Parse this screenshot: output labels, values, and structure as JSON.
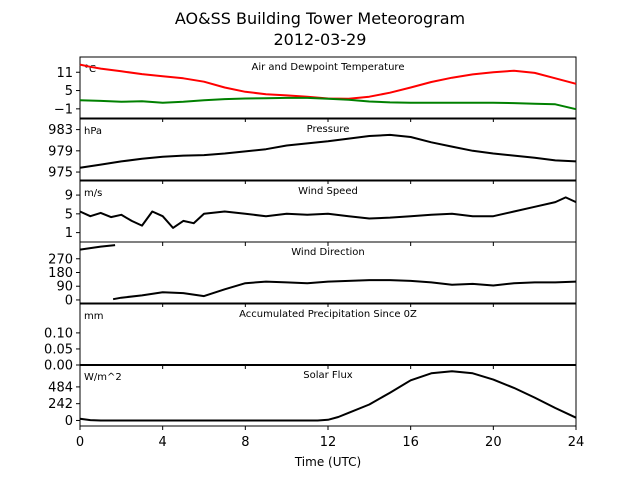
{
  "title": "AO&SS Building Tower Meteorogram",
  "subtitle": "2012-03-29",
  "xlabel": "Time (UTC)",
  "x_ticks": [
    0,
    4,
    8,
    12,
    16,
    20,
    24
  ],
  "x_tick_labels": [
    "0",
    "4",
    "8",
    "12",
    "16",
    "20",
    "24"
  ],
  "chart_data": [
    {
      "type": "line",
      "title": "Air and Dewpoint Temperature",
      "unit": "°C",
      "ylim": [
        -4,
        16
      ],
      "y_ticks": [
        -1,
        5,
        11
      ],
      "y_tick_labels": [
        "−1",
        "5",
        "11"
      ],
      "series": [
        {
          "color": "#ff0000",
          "points": [
            [
              0,
              13.5
            ],
            [
              0.5,
              12.8
            ],
            [
              1,
              12.2
            ],
            [
              2,
              11.3
            ],
            [
              3,
              10.4
            ],
            [
              4,
              9.7
            ],
            [
              5,
              9.0
            ],
            [
              6,
              7.9
            ],
            [
              7,
              6.0
            ],
            [
              8,
              4.6
            ],
            [
              9,
              3.8
            ],
            [
              10,
              3.4
            ],
            [
              11,
              3.0
            ],
            [
              12,
              2.4
            ],
            [
              13,
              2.3
            ],
            [
              14,
              3.0
            ],
            [
              15,
              4.3
            ],
            [
              16,
              6.0
            ],
            [
              17,
              7.8
            ],
            [
              18,
              9.2
            ],
            [
              19,
              10.3
            ],
            [
              20,
              11.0
            ],
            [
              21,
              11.5
            ],
            [
              22,
              10.8
            ],
            [
              23,
              9.0
            ],
            [
              24,
              7.2
            ]
          ]
        },
        {
          "color": "#008000",
          "points": [
            [
              0,
              1.8
            ],
            [
              1,
              1.6
            ],
            [
              2,
              1.3
            ],
            [
              3,
              1.5
            ],
            [
              4,
              1.0
            ],
            [
              5,
              1.3
            ],
            [
              6,
              1.8
            ],
            [
              7,
              2.2
            ],
            [
              8,
              2.4
            ],
            [
              9,
              2.5
            ],
            [
              10,
              2.6
            ],
            [
              11,
              2.6
            ],
            [
              12,
              2.3
            ],
            [
              13,
              2.0
            ],
            [
              14,
              1.4
            ],
            [
              15,
              1.1
            ],
            [
              16,
              1.0
            ],
            [
              17,
              1.0
            ],
            [
              18,
              1.0
            ],
            [
              19,
              1.0
            ],
            [
              20,
              1.0
            ],
            [
              21,
              0.9
            ],
            [
              22,
              0.7
            ],
            [
              23,
              0.5
            ],
            [
              24,
              -1.1
            ]
          ]
        }
      ]
    },
    {
      "type": "line",
      "title": "Pressure",
      "unit": "hPa",
      "ylim": [
        973.5,
        985
      ],
      "y_ticks": [
        975,
        979,
        983
      ],
      "y_tick_labels": [
        "975",
        "979",
        "983"
      ],
      "series": [
        {
          "color": "#000000",
          "points": [
            [
              0,
              975.8
            ],
            [
              1,
              976.4
            ],
            [
              2,
              977.0
            ],
            [
              3,
              977.5
            ],
            [
              4,
              977.9
            ],
            [
              5,
              978.1
            ],
            [
              6,
              978.2
            ],
            [
              7,
              978.5
            ],
            [
              8,
              978.9
            ],
            [
              9,
              979.3
            ],
            [
              10,
              980.0
            ],
            [
              11,
              980.4
            ],
            [
              12,
              980.8
            ],
            [
              13,
              981.3
            ],
            [
              14,
              981.8
            ],
            [
              15,
              982.0
            ],
            [
              16,
              981.6
            ],
            [
              17,
              980.6
            ],
            [
              18,
              979.8
            ],
            [
              19,
              979.0
            ],
            [
              20,
              978.5
            ],
            [
              21,
              978.1
            ],
            [
              22,
              977.7
            ],
            [
              23,
              977.2
            ],
            [
              24,
              977.0
            ]
          ]
        }
      ]
    },
    {
      "type": "line",
      "title": "Wind Speed",
      "unit": "m/s",
      "ylim": [
        -1,
        12
      ],
      "y_ticks": [
        1,
        5,
        9
      ],
      "y_tick_labels": [
        "1",
        "5",
        "9"
      ],
      "series": [
        {
          "color": "#000000",
          "points": [
            [
              0,
              5.5
            ],
            [
              0.5,
              4.5
            ],
            [
              1,
              5.2
            ],
            [
              1.5,
              4.3
            ],
            [
              2,
              4.8
            ],
            [
              2.5,
              3.5
            ],
            [
              3,
              2.5
            ],
            [
              3.5,
              5.5
            ],
            [
              4,
              4.5
            ],
            [
              4.5,
              2.0
            ],
            [
              5,
              3.5
            ],
            [
              5.5,
              3.0
            ],
            [
              6,
              5.0
            ],
            [
              7,
              5.5
            ],
            [
              8,
              5.0
            ],
            [
              9,
              4.5
            ],
            [
              10,
              5.0
            ],
            [
              11,
              4.8
            ],
            [
              12,
              5.0
            ],
            [
              13,
              4.5
            ],
            [
              14,
              4.0
            ],
            [
              15,
              4.2
            ],
            [
              16,
              4.5
            ],
            [
              17,
              4.8
            ],
            [
              18,
              5.0
            ],
            [
              19,
              4.5
            ],
            [
              20,
              4.5
            ],
            [
              21,
              5.5
            ],
            [
              22,
              6.5
            ],
            [
              23,
              7.5
            ],
            [
              23.5,
              8.5
            ],
            [
              24,
              7.5
            ]
          ]
        }
      ]
    },
    {
      "type": "line",
      "title": "Wind Direction",
      "unit": "",
      "ylim": [
        -20,
        380
      ],
      "y_ticks": [
        0,
        90,
        180,
        270
      ],
      "y_tick_labels": [
        "0",
        "90",
        "180",
        "270"
      ],
      "series": [
        {
          "color": "#000000",
          "points": [
            [
              0,
              330
            ],
            [
              0.5,
              340
            ],
            [
              1,
              350
            ],
            [
              1.7,
              360
            ]
          ]
        },
        {
          "color": "#000000",
          "points": [
            [
              1.6,
              5
            ],
            [
              2,
              15
            ],
            [
              3,
              30
            ],
            [
              4,
              50
            ],
            [
              5,
              45
            ],
            [
              6,
              25
            ],
            [
              7,
              70
            ],
            [
              8,
              110
            ],
            [
              9,
              120
            ],
            [
              10,
              115
            ],
            [
              11,
              110
            ],
            [
              12,
              120
            ],
            [
              13,
              125
            ],
            [
              14,
              130
            ],
            [
              15,
              130
            ],
            [
              16,
              125
            ],
            [
              17,
              115
            ],
            [
              18,
              100
            ],
            [
              19,
              105
            ],
            [
              20,
              95
            ],
            [
              21,
              110
            ],
            [
              22,
              115
            ],
            [
              23,
              115
            ],
            [
              24,
              120
            ]
          ]
        }
      ]
    },
    {
      "type": "line",
      "title": "Accumulated Precipitation Since 0Z",
      "unit": "mm",
      "ylim": [
        0,
        0.19
      ],
      "y_ticks": [
        0.0,
        0.05,
        0.1
      ],
      "y_tick_labels": [
        "0.00",
        "0.05",
        "0.10"
      ],
      "series": [
        {
          "color": "#000000",
          "points": [
            [
              0,
              0
            ],
            [
              24,
              0
            ]
          ]
        }
      ]
    },
    {
      "type": "line",
      "title": "Solar Flux",
      "unit": "W/m^2",
      "ylim": [
        -80,
        800
      ],
      "y_ticks": [
        0,
        242,
        484
      ],
      "y_tick_labels": [
        "0",
        "242",
        "484"
      ],
      "series": [
        {
          "color": "#000000",
          "points": [
            [
              0,
              25
            ],
            [
              0.5,
              5
            ],
            [
              1,
              0
            ],
            [
              11.5,
              0
            ],
            [
              12,
              10
            ],
            [
              12.5,
              50
            ],
            [
              13,
              110
            ],
            [
              14,
              230
            ],
            [
              15,
              400
            ],
            [
              16,
              580
            ],
            [
              17,
              680
            ],
            [
              18,
              710
            ],
            [
              19,
              680
            ],
            [
              20,
              590
            ],
            [
              21,
              470
            ],
            [
              22,
              330
            ],
            [
              23,
              180
            ],
            [
              24,
              40
            ]
          ]
        }
      ]
    }
  ]
}
